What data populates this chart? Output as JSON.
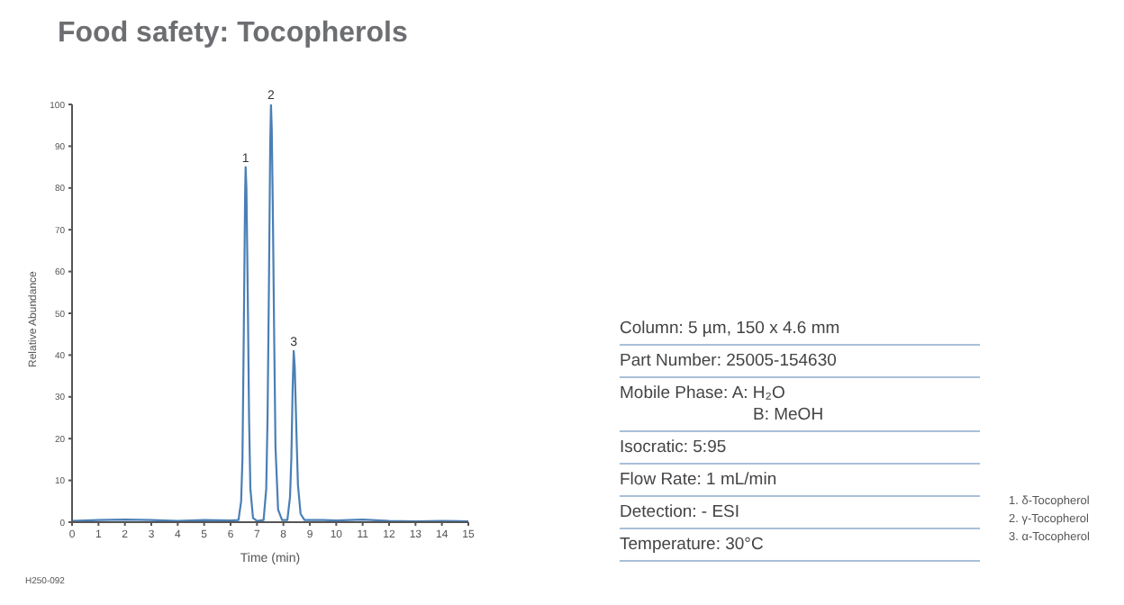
{
  "chart_data": [
    {
      "type": "line",
      "title": "Food safety: Tocopherols",
      "xlabel": "Time (min)",
      "ylabel": "Relative Abundance",
      "x": [
        0,
        1,
        2,
        3,
        4,
        5,
        6,
        6.3,
        6.4,
        6.45,
        6.5,
        6.55,
        6.57,
        6.6,
        6.65,
        6.7,
        6.75,
        6.85,
        7.0,
        7.25,
        7.35,
        7.4,
        7.45,
        7.5,
        7.53,
        7.56,
        7.6,
        7.65,
        7.7,
        7.8,
        7.95,
        8.15,
        8.25,
        8.3,
        8.35,
        8.39,
        8.43,
        8.5,
        8.55,
        8.65,
        8.8,
        9.5,
        10,
        11,
        12,
        13,
        14,
        15
      ],
      "series": [
        {
          "color": "#4a7fb5",
          "values": [
            0.3,
            0.5,
            0.6,
            0.5,
            0.3,
            0.5,
            0.4,
            0.5,
            5,
            15,
            45,
            78,
            85,
            80,
            55,
            25,
            8,
            1,
            0.3,
            0.5,
            8,
            25,
            55,
            90,
            100,
            94,
            75,
            45,
            18,
            3,
            0.5,
            0.5,
            6,
            15,
            32,
            41,
            37,
            20,
            9,
            2,
            0.5,
            0.5,
            0.4,
            0.6,
            0.3,
            0.2,
            0.3,
            0.2
          ]
        }
      ],
      "xlim": [
        0,
        15
      ],
      "xticks": [
        0,
        1,
        2,
        3,
        4,
        5,
        6,
        7,
        8,
        9,
        10,
        11,
        12,
        13,
        14,
        15
      ],
      "ylim": [
        0,
        100
      ],
      "yticks": [
        0,
        10,
        20,
        30,
        40,
        50,
        60,
        70,
        80,
        90,
        100
      ],
      "grid": false,
      "legend": false,
      "marker": "none",
      "line_style": "solid",
      "annotations": [
        {
          "text": "1",
          "x": 6.57,
          "y": 85
        },
        {
          "text": "2",
          "x": 7.53,
          "y": 100
        },
        {
          "text": "3",
          "x": 8.39,
          "y": 41
        },
        "H250-092"
      ]
    },
    {
      "type": "other",
      "annotations": [
        "Column: 5 µm, 150 x 4.6 mm",
        "Part Number: 25005-154630",
        "Mobile Phase: A: H₂O\nB: MeOH",
        "Isocratic: 5:95",
        "Flow Rate: 1 mL/min",
        "Detection: - ESI",
        "Temperature: 30°C"
      ]
    },
    {
      "type": "other",
      "annotations": [
        "1. δ-Tocopherol",
        "2. γ-Tocopherol",
        "3. α-Tocopherol"
      ]
    }
  ]
}
